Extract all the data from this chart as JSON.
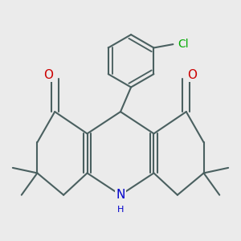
{
  "bg_color": "#ebebeb",
  "bond_color": "#4a6060",
  "bond_width": 1.5,
  "atom_colors": {
    "O": "#cc0000",
    "N": "#0000cc",
    "Cl": "#00aa00"
  },
  "font_size_atom": 10,
  "font_size_nh": 8
}
